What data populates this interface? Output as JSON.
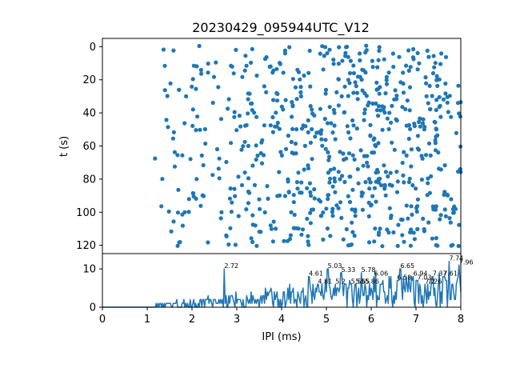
{
  "chart_data": [
    {
      "type": "scatter",
      "title": "20230429_095944UTC_V12",
      "xlabel": "",
      "ylabel": "t (s)",
      "xlim": [
        0,
        8
      ],
      "ylim": [
        125,
        -5
      ],
      "y_inverted": true,
      "yticks": [
        0,
        20,
        40,
        60,
        80,
        100,
        120
      ],
      "ytick_labels": [
        "0",
        "20",
        "40",
        "60",
        "80",
        "100",
        "120"
      ],
      "grid": false,
      "color": "#1f77b4",
      "x_range_populated": [
        1.15,
        8.0
      ],
      "t_range": [
        0,
        121
      ],
      "approx_point_count": 700,
      "points_note_sampling": "dense spike raster; sparse for IPI < 2 ms, dense above 4 ms"
    },
    {
      "type": "line",
      "title": "",
      "xlabel": "IPI (ms)",
      "ylabel": "",
      "xlim": [
        0,
        8
      ],
      "ylim": [
        0,
        14
      ],
      "xticks": [
        0,
        1,
        2,
        3,
        4,
        5,
        6,
        7,
        8
      ],
      "xtick_labels": [
        "0",
        "1",
        "2",
        "3",
        "4",
        "5",
        "6",
        "7",
        "8"
      ],
      "yticks": [
        0,
        10
      ],
      "ytick_labels": [
        "0",
        "10"
      ],
      "grid": false,
      "color": "#1f77b4",
      "peaks": [
        {
          "x": 2.72,
          "y": 10,
          "label": "2.72"
        },
        {
          "x": 4.61,
          "y": 8,
          "label": "4.61"
        },
        {
          "x": 4.81,
          "y": 6,
          "label": "4.81"
        },
        {
          "x": 5.03,
          "y": 10,
          "label": "5.03"
        },
        {
          "x": 5.2,
          "y": 6,
          "label": "5.2"
        },
        {
          "x": 5.33,
          "y": 9,
          "label": "5.33"
        },
        {
          "x": 5.55,
          "y": 6,
          "label": "5.55"
        },
        {
          "x": 5.65,
          "y": 6,
          "label": "5.65"
        },
        {
          "x": 5.78,
          "y": 9,
          "label": "5.78"
        },
        {
          "x": 5.86,
          "y": 6,
          "label": "5.86"
        },
        {
          "x": 6.06,
          "y": 8,
          "label": "6.06"
        },
        {
          "x": 6.58,
          "y": 7,
          "label": "6.58"
        },
        {
          "x": 6.65,
          "y": 10,
          "label": "6.65"
        },
        {
          "x": 6.94,
          "y": 8,
          "label": "6.94"
        },
        {
          "x": 7.03,
          "y": 7,
          "label": "7.03"
        },
        {
          "x": 7.2,
          "y": 6,
          "label": "7.2"
        },
        {
          "x": 7.26,
          "y": 6,
          "label": "7.26"
        },
        {
          "x": 7.37,
          "y": 8,
          "label": "7.37"
        },
        {
          "x": 7.61,
          "y": 8,
          "label": "7.61"
        },
        {
          "x": 7.74,
          "y": 12,
          "label": "7.74"
        },
        {
          "x": 7.96,
          "y": 11,
          "label": "7.96"
        }
      ]
    }
  ]
}
